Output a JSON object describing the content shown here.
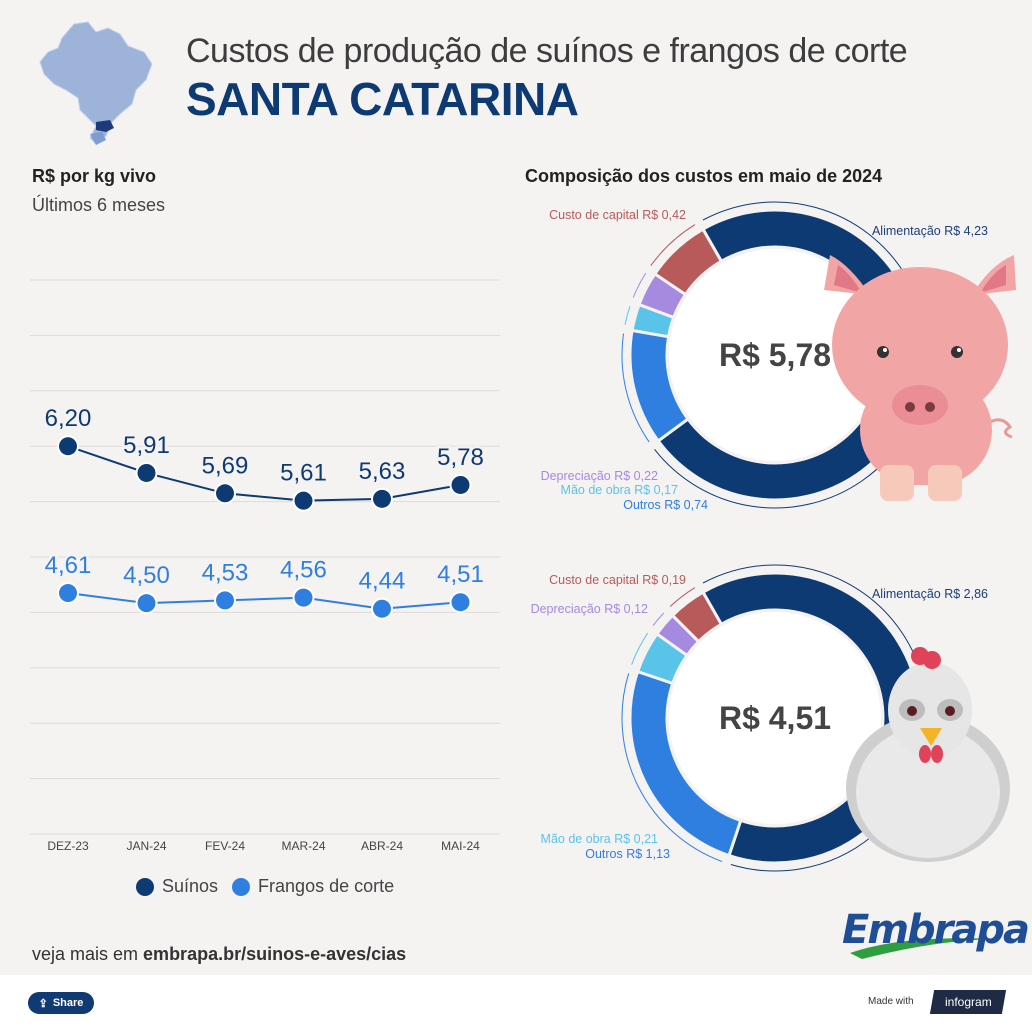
{
  "header": {
    "title": "Custos de produção de suínos e frangos de corte",
    "state": "SANTA CATARINA"
  },
  "line_section": {
    "title": "R$ por kg vivo",
    "subtitle": "Últimos 6 meses"
  },
  "composition_section": {
    "title": "Composição dos custos em maio de 2024"
  },
  "legend": {
    "pork": "Suínos",
    "chicken": "Frangos de corte"
  },
  "footer": {
    "prefix": "veja mais em ",
    "link": "embrapa.br/suinos-e-aves/cias",
    "logo": "Embrapa",
    "share": "Share",
    "made_with": "Made with",
    "infogram": "infogram"
  },
  "colors": {
    "navy": "#0e3a73",
    "blue": "#2f7fe0",
    "red": "#b85a5a",
    "purple": "#a58ae0",
    "cyan": "#5ac3ea",
    "outros": "#2f7fe0"
  },
  "chart_data": [
    {
      "type": "line",
      "x": [
        "DEZ-23",
        "JAN-24",
        "FEV-24",
        "MAR-24",
        "ABR-24",
        "MAI-24"
      ],
      "series": [
        {
          "name": "Suínos",
          "values": [
            6.2,
            5.91,
            5.69,
            5.61,
            5.63,
            5.78
          ],
          "labels": [
            "6,20",
            "5,91",
            "5,69",
            "5,61",
            "5,63",
            "5,78"
          ],
          "color": "#0e3a73"
        },
        {
          "name": "Frangos de corte",
          "values": [
            4.61,
            4.5,
            4.53,
            4.56,
            4.44,
            4.51
          ],
          "labels": [
            "4,61",
            "4,50",
            "4,53",
            "4,56",
            "4,44",
            "4,51"
          ],
          "color": "#2f7fe0"
        }
      ],
      "ylim": [
        2.0,
        8.0
      ],
      "grid": true
    },
    {
      "type": "pie",
      "center_label": "R$ 5,78",
      "slices": [
        {
          "label": "Alimentação R$ 4,23",
          "value": 4.23,
          "color": "#0e3a73"
        },
        {
          "label": "Outros R$ 0,74",
          "value": 0.74,
          "color": "#2f7fe0"
        },
        {
          "label": "Mão de obra R$ 0,17",
          "value": 0.17,
          "color": "#5ac3ea"
        },
        {
          "label": "Depreciação R$ 0,22",
          "value": 0.22,
          "color": "#a58ae0"
        },
        {
          "label": "Custo de capital R$ 0,42",
          "value": 0.42,
          "color": "#b85a5a"
        }
      ],
      "animal": "pig"
    },
    {
      "type": "pie",
      "center_label": "R$ 4,51",
      "slices": [
        {
          "label": "Alimentação R$ 2,86",
          "value": 2.86,
          "color": "#0e3a73"
        },
        {
          "label": "Outros R$ 1,13",
          "value": 1.13,
          "color": "#2f7fe0"
        },
        {
          "label": "Mão de obra R$ 0,21",
          "value": 0.21,
          "color": "#5ac3ea"
        },
        {
          "label": "Depreciação R$ 0,12",
          "value": 0.12,
          "color": "#a58ae0"
        },
        {
          "label": "Custo de capital R$ 0,19",
          "value": 0.19,
          "color": "#b85a5a"
        }
      ],
      "animal": "chicken"
    }
  ]
}
